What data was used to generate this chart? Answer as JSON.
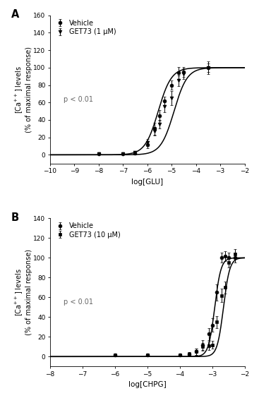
{
  "panel_A": {
    "title": "A",
    "xlabel": "log[GLU]",
    "ylabel": "[Ca$^{++}$] levels\n(% of maximal response)",
    "xlim": [
      -10,
      -2
    ],
    "ylim": [
      -10,
      160
    ],
    "yticks": [
      0,
      20,
      40,
      60,
      80,
      100,
      120,
      140,
      160
    ],
    "xticks": [
      -10,
      -9,
      -8,
      -7,
      -6,
      -5,
      -4,
      -3,
      -2
    ],
    "p_text": "p < 0.01",
    "vehicle": {
      "x": [
        -8,
        -7,
        -6.5,
        -6,
        -5.7,
        -5.5,
        -5.3,
        -5,
        -4.7,
        -4.5,
        -3.5
      ],
      "y": [
        1.5,
        1.0,
        2.0,
        12.0,
        30.0,
        45.0,
        62.0,
        80.0,
        94.0,
        95.0,
        100.0
      ],
      "yerr": [
        1.0,
        1.0,
        2.0,
        4.0,
        7.0,
        6.0,
        5.0,
        5.0,
        7.0,
        6.0,
        5.0
      ],
      "ec50": -5.55,
      "hill": 1.6,
      "marker": "o",
      "label": "Vehicle"
    },
    "get73": {
      "x": [
        -8,
        -7,
        -6.5,
        -6,
        -5.7,
        -5.5,
        -5.3,
        -5,
        -4.7,
        -4.5,
        -3.5
      ],
      "y": [
        1.5,
        1.0,
        2.5,
        14.0,
        27.0,
        35.0,
        55.0,
        65.0,
        85.0,
        93.0,
        100.0
      ],
      "yerr": [
        1.0,
        1.0,
        2.0,
        4.0,
        5.0,
        5.0,
        6.0,
        8.0,
        6.0,
        6.0,
        7.0
      ],
      "ec50": -4.9,
      "hill": 1.6,
      "marker": "v",
      "label": "GET73 (1 μM)"
    }
  },
  "panel_B": {
    "title": "B",
    "xlabel": "log[CHPG]",
    "ylabel": "[Ca$^{++}$] levels\n(% of maximal response)",
    "xlim": [
      -8,
      -2
    ],
    "ylim": [
      -10,
      140
    ],
    "yticks": [
      0,
      20,
      40,
      60,
      80,
      100,
      120,
      140
    ],
    "xticks": [
      -8,
      -7,
      -6,
      -5,
      -4,
      -3,
      -2
    ],
    "p_text": "p < 0.01",
    "vehicle": {
      "x": [
        -6,
        -5,
        -4,
        -3.7,
        -3.5,
        -3.3,
        -3.1,
        -3.0,
        -2.85,
        -2.7,
        -2.6,
        -2.5,
        -2.3
      ],
      "y": [
        1.5,
        1.5,
        1.5,
        2.5,
        5.0,
        12.0,
        23.0,
        32.0,
        65.0,
        100.0,
        102.0,
        100.0,
        100.0
      ],
      "yerr": [
        1.0,
        1.0,
        1.0,
        2.0,
        3.0,
        5.0,
        6.0,
        7.0,
        8.0,
        5.0,
        5.0,
        5.0,
        5.0
      ],
      "ec50": -2.92,
      "hill": 4.5,
      "marker": "o",
      "label": "Vehicle"
    },
    "get73": {
      "x": [
        -6,
        -5,
        -4,
        -3.7,
        -3.5,
        -3.3,
        -3.1,
        -3.0,
        -2.85,
        -2.7,
        -2.6,
        -2.5,
        -2.3
      ],
      "y": [
        1.5,
        1.5,
        1.5,
        2.5,
        5.0,
        10.0,
        11.0,
        12.0,
        35.0,
        62.0,
        70.0,
        95.0,
        104.0
      ],
      "yerr": [
        1.0,
        1.0,
        1.0,
        2.0,
        3.0,
        4.0,
        4.0,
        4.0,
        6.0,
        7.0,
        6.0,
        5.0,
        5.0
      ],
      "ec50": -2.65,
      "hill": 4.5,
      "marker": "s",
      "label": "GET73 (10 μM)"
    }
  },
  "figure_bg": "#ffffff",
  "font_size": 7,
  "label_font_size": 7.5,
  "line_color": "black",
  "line_width": 1.1,
  "marker_size": 3.5,
  "capsize": 1.5,
  "elinewidth": 0.7
}
